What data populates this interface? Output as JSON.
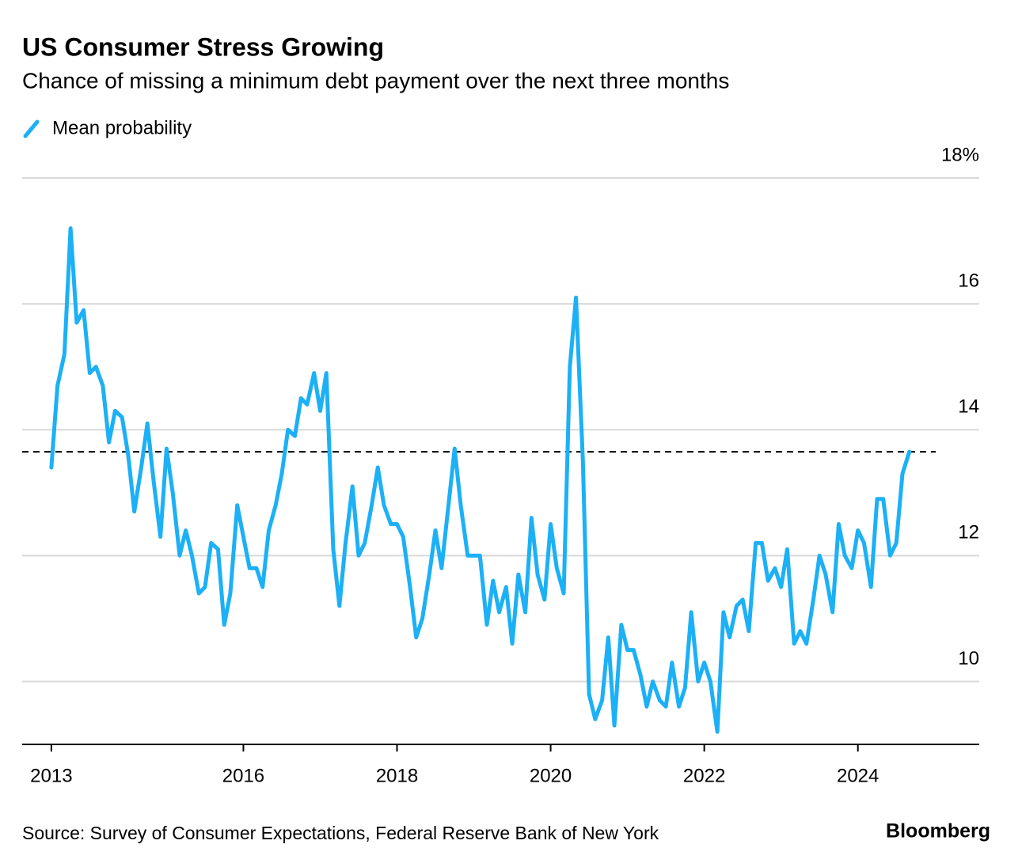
{
  "chart_data": {
    "type": "line",
    "title": "US Consumer Stress Growing",
    "subtitle": "Chance of missing a minimum debt payment over the next three months",
    "source": "Source: Survey of Consumer Expectations, Federal Reserve Bank of New York",
    "brand": "Bloomberg",
    "legend": "top-left",
    "grid": true,
    "reference_line": 13.65,
    "xlim": [
      2013.12,
      2025.58
    ],
    "ylim": [
      9,
      18
    ],
    "xticks": [
      {
        "value": 2013.5,
        "label": "2013"
      },
      2016,
      2018,
      2020,
      2022,
      2024
    ],
    "yticks": [
      10,
      12,
      14,
      16,
      {
        "value": 18,
        "label": "18%"
      }
    ],
    "x": [
      2013.5,
      2013.58,
      2013.67,
      2013.75,
      2013.83,
      2013.92,
      2014,
      2014.08,
      2014.17,
      2014.25,
      2014.33,
      2014.42,
      2014.5,
      2014.58,
      2014.67,
      2014.75,
      2014.83,
      2014.92,
      2015,
      2015.08,
      2015.17,
      2015.25,
      2015.33,
      2015.42,
      2015.5,
      2015.58,
      2015.67,
      2015.75,
      2015.83,
      2015.92,
      2016,
      2016.08,
      2016.17,
      2016.25,
      2016.33,
      2016.42,
      2016.5,
      2016.58,
      2016.67,
      2016.75,
      2016.83,
      2016.92,
      2017,
      2017.08,
      2017.17,
      2017.25,
      2017.33,
      2017.42,
      2017.5,
      2017.58,
      2017.67,
      2017.75,
      2017.83,
      2017.92,
      2018,
      2018.08,
      2018.17,
      2018.25,
      2018.33,
      2018.42,
      2018.5,
      2018.58,
      2018.67,
      2018.75,
      2018.83,
      2018.92,
      2019,
      2019.08,
      2019.17,
      2019.25,
      2019.33,
      2019.42,
      2019.5,
      2019.58,
      2019.67,
      2019.75,
      2019.83,
      2019.92,
      2020,
      2020.08,
      2020.17,
      2020.25,
      2020.33,
      2020.42,
      2020.5,
      2020.58,
      2020.67,
      2020.75,
      2020.83,
      2020.92,
      2021,
      2021.08,
      2021.17,
      2021.25,
      2021.33,
      2021.42,
      2021.5,
      2021.58,
      2021.67,
      2021.75,
      2021.83,
      2021.92,
      2022,
      2022.08,
      2022.17,
      2022.25,
      2022.33,
      2022.42,
      2022.5,
      2022.58,
      2022.67,
      2022.75,
      2022.83,
      2022.92,
      2023,
      2023.08,
      2023.17,
      2023.25,
      2023.33,
      2023.42,
      2023.5,
      2023.58,
      2023.67,
      2023.75,
      2023.83,
      2023.92,
      2024,
      2024.08,
      2024.17,
      2024.25,
      2024.33,
      2024.42,
      2024.5,
      2024.58,
      2024.67
    ],
    "series": [
      {
        "name": "Mean probability",
        "color": "#1cb0f6",
        "values": [
          13.4,
          14.7,
          15.2,
          17.2,
          15.7,
          15.9,
          14.9,
          15.0,
          14.7,
          13.8,
          14.3,
          14.2,
          13.6,
          12.7,
          13.4,
          14.1,
          13.2,
          12.3,
          13.7,
          13.0,
          12.0,
          12.4,
          12.0,
          11.4,
          11.5,
          12.2,
          12.1,
          10.9,
          11.4,
          12.8,
          12.3,
          11.8,
          11.8,
          11.5,
          12.4,
          12.8,
          13.3,
          14.0,
          13.9,
          14.5,
          14.4,
          14.9,
          14.3,
          14.9,
          12.1,
          11.2,
          12.2,
          13.1,
          12.0,
          12.2,
          12.8,
          13.4,
          12.8,
          12.5,
          12.5,
          12.3,
          11.5,
          10.7,
          11.0,
          11.7,
          12.4,
          11.8,
          12.8,
          13.7,
          12.8,
          12.0,
          12.0,
          12.0,
          10.9,
          11.6,
          11.1,
          11.5,
          10.6,
          11.7,
          11.1,
          12.6,
          11.7,
          11.3,
          12.5,
          11.8,
          11.4,
          15.0,
          16.1,
          13.5,
          9.8,
          9.4,
          9.7,
          10.7,
          9.3,
          10.9,
          10.5,
          10.5,
          10.1,
          9.6,
          10.0,
          9.7,
          9.6,
          10.3,
          9.6,
          9.9,
          11.1,
          10.0,
          10.3,
          10.0,
          9.2,
          11.1,
          10.7,
          11.2,
          11.3,
          10.8,
          12.2,
          12.2,
          11.6,
          11.8,
          11.5,
          12.1,
          10.6,
          10.8,
          10.6,
          11.3,
          12.0,
          11.7,
          11.1,
          12.5,
          12.0,
          11.8,
          12.4,
          12.2,
          11.5,
          12.9,
          12.9,
          12.0,
          12.2,
          13.3,
          13.65
        ]
      }
    ]
  }
}
